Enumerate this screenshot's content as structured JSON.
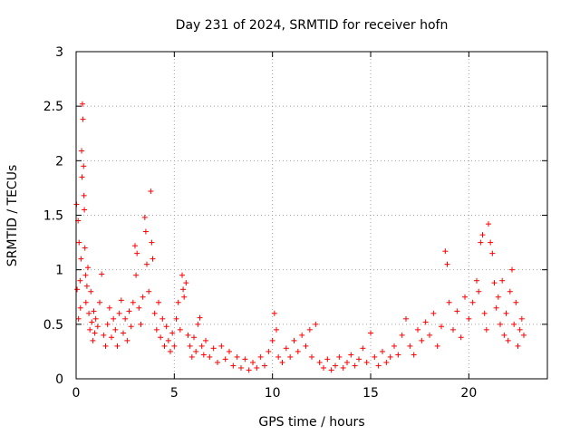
{
  "chart_data": {
    "type": "scatter",
    "title": "Day 231 of 2024, SRMTID for receiver hofn",
    "xlabel": "GPS time / hours",
    "ylabel": "SRMTID / TECUs",
    "xlim": [
      0,
      24
    ],
    "ylim": [
      0,
      3
    ],
    "x_ticks": [
      0,
      5,
      10,
      15,
      20
    ],
    "x_tick_labels": [
      "0",
      "5",
      "10",
      "15",
      "20"
    ],
    "y_ticks": [
      0,
      0.5,
      1,
      1.5,
      2,
      2.5,
      3
    ],
    "y_tick_labels": [
      "0",
      "0.5",
      "1",
      "1.5",
      "2",
      "2.5",
      "3"
    ],
    "grid": true,
    "marker": "+",
    "series_color": "#ff0000",
    "series": [
      {
        "name": "SRMTID",
        "points": [
          [
            0.02,
            1.6
          ],
          [
            0.05,
            0.82
          ],
          [
            0.1,
            1.45
          ],
          [
            0.12,
            0.55
          ],
          [
            0.15,
            1.25
          ],
          [
            0.2,
            0.9
          ],
          [
            0.22,
            0.65
          ],
          [
            0.25,
            1.1
          ],
          [
            0.28,
            2.09
          ],
          [
            0.3,
            1.85
          ],
          [
            0.32,
            2.52
          ],
          [
            0.35,
            2.38
          ],
          [
            0.38,
            1.95
          ],
          [
            0.4,
            1.68
          ],
          [
            0.42,
            1.55
          ],
          [
            0.45,
            1.2
          ],
          [
            0.48,
            0.95
          ],
          [
            0.5,
            0.7
          ],
          [
            0.55,
            0.85
          ],
          [
            0.6,
            1.02
          ],
          [
            0.65,
            0.6
          ],
          [
            0.7,
            0.45
          ],
          [
            0.75,
            0.8
          ],
          [
            0.8,
            0.52
          ],
          [
            0.85,
            0.35
          ],
          [
            0.9,
            0.62
          ],
          [
            0.95,
            0.42
          ],
          [
            1.0,
            0.55
          ],
          [
            1.1,
            0.48
          ],
          [
            1.2,
            0.7
          ],
          [
            1.3,
            0.96
          ],
          [
            1.4,
            0.4
          ],
          [
            1.5,
            0.3
          ],
          [
            1.6,
            0.5
          ],
          [
            1.7,
            0.65
          ],
          [
            1.8,
            0.38
          ],
          [
            1.9,
            0.55
          ],
          [
            2.0,
            0.45
          ],
          [
            2.1,
            0.3
          ],
          [
            2.2,
            0.6
          ],
          [
            2.3,
            0.72
          ],
          [
            2.4,
            0.42
          ],
          [
            2.5,
            0.55
          ],
          [
            2.6,
            0.35
          ],
          [
            2.7,
            0.62
          ],
          [
            2.8,
            0.48
          ],
          [
            2.9,
            0.7
          ],
          [
            3.0,
            1.22
          ],
          [
            3.05,
            0.95
          ],
          [
            3.1,
            1.15
          ],
          [
            3.2,
            0.65
          ],
          [
            3.3,
            0.5
          ],
          [
            3.4,
            0.75
          ],
          [
            3.5,
            1.48
          ],
          [
            3.55,
            1.35
          ],
          [
            3.6,
            1.05
          ],
          [
            3.7,
            0.8
          ],
          [
            3.8,
            1.72
          ],
          [
            3.85,
            1.25
          ],
          [
            3.9,
            1.1
          ],
          [
            4.0,
            0.6
          ],
          [
            4.1,
            0.45
          ],
          [
            4.2,
            0.7
          ],
          [
            4.3,
            0.38
          ],
          [
            4.4,
            0.55
          ],
          [
            4.5,
            0.3
          ],
          [
            4.6,
            0.48
          ],
          [
            4.7,
            0.35
          ],
          [
            4.8,
            0.25
          ],
          [
            4.9,
            0.42
          ],
          [
            5.0,
            0.3
          ],
          [
            5.1,
            0.55
          ],
          [
            5.2,
            0.7
          ],
          [
            5.3,
            0.45
          ],
          [
            5.4,
            0.95
          ],
          [
            5.45,
            0.82
          ],
          [
            5.5,
            0.75
          ],
          [
            5.6,
            0.88
          ],
          [
            5.7,
            0.4
          ],
          [
            5.8,
            0.3
          ],
          [
            5.9,
            0.2
          ],
          [
            6.0,
            0.38
          ],
          [
            6.1,
            0.25
          ],
          [
            6.2,
            0.5
          ],
          [
            6.3,
            0.56
          ],
          [
            6.4,
            0.3
          ],
          [
            6.5,
            0.22
          ],
          [
            6.6,
            0.35
          ],
          [
            6.8,
            0.2
          ],
          [
            7.0,
            0.28
          ],
          [
            7.2,
            0.15
          ],
          [
            7.4,
            0.3
          ],
          [
            7.6,
            0.18
          ],
          [
            7.8,
            0.25
          ],
          [
            8.0,
            0.12
          ],
          [
            8.2,
            0.2
          ],
          [
            8.4,
            0.1
          ],
          [
            8.6,
            0.18
          ],
          [
            8.8,
            0.08
          ],
          [
            9.0,
            0.15
          ],
          [
            9.2,
            0.1
          ],
          [
            9.4,
            0.2
          ],
          [
            9.6,
            0.12
          ],
          [
            9.8,
            0.25
          ],
          [
            10.0,
            0.35
          ],
          [
            10.1,
            0.6
          ],
          [
            10.2,
            0.45
          ],
          [
            10.3,
            0.2
          ],
          [
            10.5,
            0.15
          ],
          [
            10.7,
            0.28
          ],
          [
            10.9,
            0.2
          ],
          [
            11.1,
            0.35
          ],
          [
            11.3,
            0.25
          ],
          [
            11.5,
            0.4
          ],
          [
            11.7,
            0.3
          ],
          [
            11.9,
            0.45
          ],
          [
            12.0,
            0.2
          ],
          [
            12.2,
            0.5
          ],
          [
            12.4,
            0.15
          ],
          [
            12.6,
            0.1
          ],
          [
            12.8,
            0.18
          ],
          [
            13.0,
            0.08
          ],
          [
            13.2,
            0.12
          ],
          [
            13.4,
            0.2
          ],
          [
            13.6,
            0.1
          ],
          [
            13.8,
            0.15
          ],
          [
            14.0,
            0.22
          ],
          [
            14.2,
            0.12
          ],
          [
            14.4,
            0.18
          ],
          [
            14.6,
            0.28
          ],
          [
            14.8,
            0.15
          ],
          [
            15.0,
            0.42
          ],
          [
            15.2,
            0.2
          ],
          [
            15.4,
            0.12
          ],
          [
            15.6,
            0.25
          ],
          [
            15.8,
            0.15
          ],
          [
            16.0,
            0.2
          ],
          [
            16.2,
            0.3
          ],
          [
            16.4,
            0.22
          ],
          [
            16.6,
            0.4
          ],
          [
            16.8,
            0.55
          ],
          [
            17.0,
            0.3
          ],
          [
            17.2,
            0.22
          ],
          [
            17.4,
            0.45
          ],
          [
            17.6,
            0.35
          ],
          [
            17.8,
            0.52
          ],
          [
            18.0,
            0.4
          ],
          [
            18.2,
            0.6
          ],
          [
            18.4,
            0.3
          ],
          [
            18.6,
            0.48
          ],
          [
            18.8,
            1.17
          ],
          [
            18.9,
            1.05
          ],
          [
            19.0,
            0.7
          ],
          [
            19.2,
            0.45
          ],
          [
            19.4,
            0.62
          ],
          [
            19.6,
            0.38
          ],
          [
            19.8,
            0.75
          ],
          [
            20.0,
            0.55
          ],
          [
            20.2,
            0.7
          ],
          [
            20.4,
            0.9
          ],
          [
            20.5,
            0.8
          ],
          [
            20.6,
            1.25
          ],
          [
            20.7,
            1.32
          ],
          [
            20.8,
            0.6
          ],
          [
            20.9,
            0.45
          ],
          [
            21.0,
            1.42
          ],
          [
            21.1,
            1.25
          ],
          [
            21.2,
            1.15
          ],
          [
            21.3,
            0.88
          ],
          [
            21.4,
            0.65
          ],
          [
            21.5,
            0.75
          ],
          [
            21.6,
            0.5
          ],
          [
            21.7,
            0.9
          ],
          [
            21.8,
            0.4
          ],
          [
            21.9,
            0.6
          ],
          [
            22.0,
            0.35
          ],
          [
            22.1,
            0.8
          ],
          [
            22.2,
            1.0
          ],
          [
            22.3,
            0.5
          ],
          [
            22.4,
            0.7
          ],
          [
            22.5,
            0.3
          ],
          [
            22.6,
            0.45
          ],
          [
            22.7,
            0.55
          ],
          [
            22.8,
            0.4
          ]
        ]
      }
    ]
  }
}
